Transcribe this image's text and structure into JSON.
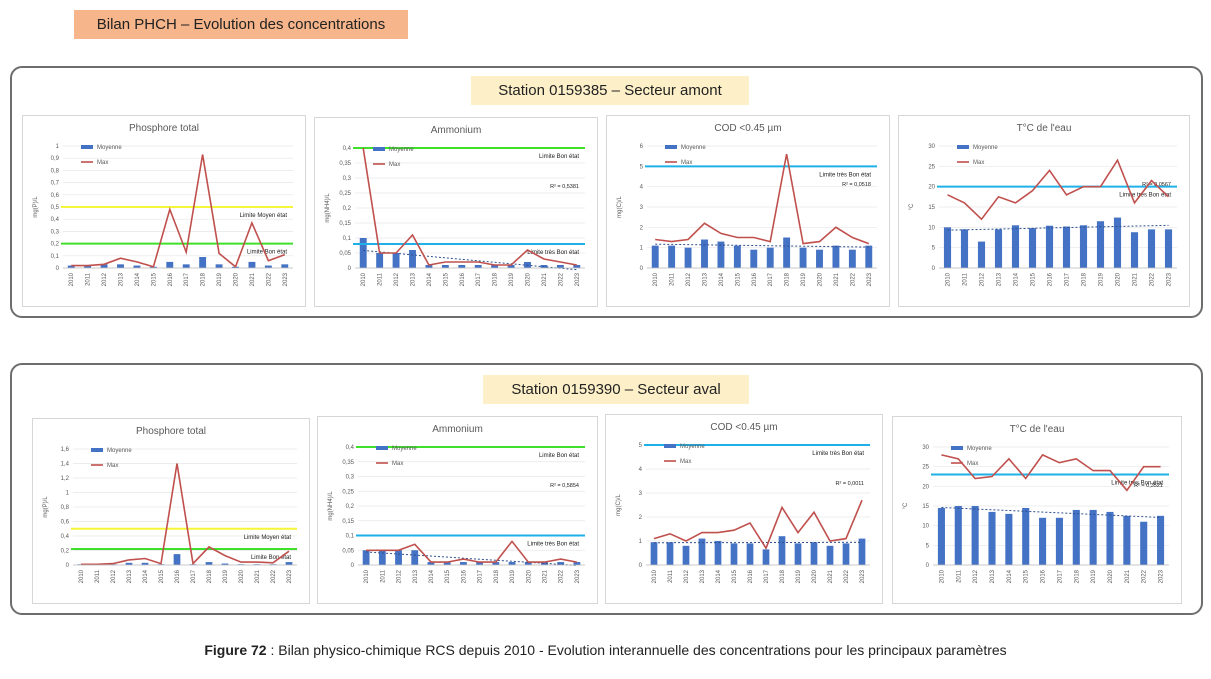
{
  "header": {
    "title": "Bilan PHCH – Evolution des concentrations"
  },
  "panels": [
    {
      "station": "Station 0159385 – Secteur amont",
      "charts": [
        {
          "title": "Phosphore total",
          "ylabel": "mg(P)/L",
          "legend": [
            "Moyenne",
            "Max"
          ],
          "ticks": [
            "0",
            "0,1",
            "0,2",
            "0,3",
            "0,4",
            "0,5",
            "0,6",
            "0,7",
            "0,8",
            "0,9",
            "1"
          ],
          "limits": [
            {
              "label": "Limite Moyen état",
              "value": 0.5,
              "color": "#f5f53a"
            },
            {
              "label": "Limite Bon état",
              "value": 0.2,
              "color": "#3ee02a"
            }
          ],
          "r2": ""
        },
        {
          "title": "Ammonium",
          "ylabel": "mg(NH4)/L",
          "legend": [
            "Moyenne",
            "Max"
          ],
          "ticks": [
            "0",
            "0,05",
            "0,1",
            "0,15",
            "0,2",
            "0,25",
            "0,3",
            "0,35",
            "0,4"
          ],
          "limits": [
            {
              "label": "Limite Bon état",
              "value": 0.4,
              "color": "#3ee02a"
            },
            {
              "label": "Limite très Bon état",
              "value": 0.08,
              "color": "#1fb0e8"
            }
          ],
          "r2": "R² = 0,5381"
        },
        {
          "title": "COD <0.45 µm",
          "ylabel": "mg(C)/L",
          "legend": [
            "Moyenne",
            "Max"
          ],
          "ticks": [
            "0",
            "1",
            "2",
            "3",
            "4",
            "5",
            "6"
          ],
          "limits": [
            {
              "label": "Limite très Bon état",
              "value": 5,
              "color": "#1fb0e8"
            }
          ],
          "r2": "R² = 0,0518"
        },
        {
          "title": "T°C de l'eau",
          "ylabel": "°C",
          "legend": [
            "Moyenne",
            "Max"
          ],
          "ticks": [
            "0",
            "5",
            "10",
            "15",
            "20",
            "25",
            "30"
          ],
          "limits": [
            {
              "label": "Limite très Bon état",
              "value": 20,
              "color": "#1fb0e8"
            }
          ],
          "r2": "R² = 0,0567"
        }
      ]
    },
    {
      "station": "Station 0159390 – Secteur aval",
      "charts": [
        {
          "title": "Phosphore total",
          "ylabel": "mg(P)/L",
          "legend": [
            "Moyenne",
            "Max"
          ],
          "ticks": [
            "0",
            "0,2",
            "0,4",
            "0,6",
            "0,8",
            "1",
            "1,2",
            "1,4",
            "1,6"
          ],
          "limits": [
            {
              "label": "Limite Moyen état",
              "value": 0.5,
              "color": "#f5f53a"
            },
            {
              "label": "Limite Bon état",
              "value": 0.22,
              "color": "#3ee02a"
            }
          ],
          "r2": ""
        },
        {
          "title": "Ammonium",
          "ylabel": "mg(NH4)/L",
          "legend": [
            "Moyenne",
            "Max"
          ],
          "ticks": [
            "0",
            "0,05",
            "0,1",
            "0,15",
            "0,2",
            "0,25",
            "0,3",
            "0,35",
            "0,4"
          ],
          "limits": [
            {
              "label": "Limite Bon état",
              "value": 0.4,
              "color": "#3ee02a"
            },
            {
              "label": "Limite très Bon état",
              "value": 0.1,
              "color": "#1fb0e8"
            }
          ],
          "r2": "R² = 0,5854"
        },
        {
          "title": "COD <0.45 µm",
          "ylabel": "mg(C)/L",
          "legend": [
            "Moyenne",
            "Max"
          ],
          "ticks": [
            "0",
            "1",
            "2",
            "3",
            "4",
            "5"
          ],
          "limits": [
            {
              "label": "Limite très Bon état",
              "value": 5,
              "color": "#1fb0e8"
            }
          ],
          "r2": "R² = 0,0011"
        },
        {
          "title": "T°C de l'eau",
          "ylabel": "°C",
          "legend": [
            "Moyenne",
            "Max"
          ],
          "ticks": [
            "0",
            "5",
            "10",
            "15",
            "20",
            "25",
            "30"
          ],
          "limits": [
            {
              "label": "Limite très Bon état",
              "value": 23,
              "color": "#1fb0e8"
            }
          ],
          "r2": "R² = 0,3521"
        }
      ]
    }
  ],
  "chart_data": [
    {
      "type": "bar",
      "title": "Phosphore total",
      "ylim": [
        0,
        1
      ],
      "categories": [
        "2010",
        "2011",
        "2012",
        "2013",
        "2014",
        "2015",
        "2016",
        "2017",
        "2018",
        "2019",
        "2020",
        "2021",
        "2022",
        "2023"
      ],
      "series": [
        {
          "name": "Moyenne",
          "values": [
            0.02,
            0.02,
            0.03,
            0.03,
            0.02,
            0.01,
            0.05,
            0.03,
            0.09,
            0.03,
            0.01,
            0.05,
            0.02,
            0.03
          ]
        },
        {
          "name": "Max",
          "values": [
            0.02,
            0.02,
            0.03,
            0.08,
            0.05,
            0.01,
            0.48,
            0.13,
            0.93,
            0.12,
            0.01,
            0.37,
            0.06,
            0.11
          ]
        }
      ]
    },
    {
      "type": "bar",
      "title": "Ammonium",
      "ylim": [
        0,
        0.4
      ],
      "categories": [
        "2010",
        "2011",
        "2012",
        "2013",
        "2014",
        "2015",
        "2016",
        "2017",
        "2018",
        "2019",
        "2020",
        "2021",
        "2022",
        "2023"
      ],
      "series": [
        {
          "name": "Moyenne",
          "values": [
            0.1,
            0.05,
            0.05,
            0.06,
            0.01,
            0.01,
            0.01,
            0.01,
            0.01,
            0.01,
            0.02,
            0.01,
            0.01,
            0.01
          ]
        },
        {
          "name": "Max",
          "values": [
            0.4,
            0.05,
            0.05,
            0.11,
            0.01,
            0.02,
            0.02,
            0.02,
            0.01,
            0.01,
            0.06,
            0.03,
            0.02,
            0.01
          ]
        }
      ]
    },
    {
      "type": "bar",
      "title": "COD <0.45 µm",
      "ylim": [
        0,
        6
      ],
      "categories": [
        "2010",
        "2011",
        "2012",
        "2013",
        "2014",
        "2015",
        "2016",
        "2017",
        "2018",
        "2019",
        "2020",
        "2021",
        "2022",
        "2023"
      ],
      "series": [
        {
          "name": "Moyenne",
          "values": [
            1.1,
            1.1,
            1.0,
            1.4,
            1.3,
            1.1,
            0.9,
            1.0,
            1.5,
            1.0,
            0.9,
            1.1,
            0.9,
            1.1
          ]
        },
        {
          "name": "Max",
          "values": [
            1.4,
            1.3,
            1.4,
            2.2,
            1.7,
            1.5,
            1.5,
            1.3,
            5.6,
            1.2,
            1.3,
            2.0,
            1.5,
            1.2
          ]
        }
      ]
    },
    {
      "type": "bar",
      "title": "T°C de l'eau",
      "ylim": [
        0,
        30
      ],
      "categories": [
        "2010",
        "2011",
        "2012",
        "2013",
        "2014",
        "2015",
        "2016",
        "2017",
        "2018",
        "2019",
        "2020",
        "2021",
        "2022",
        "2023"
      ],
      "series": [
        {
          "name": "Moyenne",
          "values": [
            10,
            9.5,
            6.5,
            9.5,
            10.5,
            9.8,
            10.4,
            10.2,
            10.5,
            11.5,
            12.4,
            8.8,
            9.5,
            9.5
          ]
        },
        {
          "name": "Max",
          "values": [
            18,
            16,
            12,
            17.5,
            16,
            19,
            24,
            18,
            20,
            20,
            26.5,
            16,
            21.5,
            17.5
          ]
        }
      ]
    },
    {
      "type": "bar",
      "title": "Phosphore total",
      "ylim": [
        0,
        1.6
      ],
      "categories": [
        "2010",
        "2011",
        "2012",
        "2013",
        "2014",
        "2015",
        "2016",
        "2017",
        "2018",
        "2019",
        "2020",
        "2021",
        "2022",
        "2023"
      ],
      "series": [
        {
          "name": "Moyenne",
          "values": [
            0.01,
            0.01,
            0.01,
            0.03,
            0.03,
            0.01,
            0.15,
            0.01,
            0.04,
            0.02,
            0.01,
            0.01,
            0.01,
            0.04
          ]
        },
        {
          "name": "Max",
          "values": [
            0.01,
            0.01,
            0.02,
            0.07,
            0.09,
            0.02,
            1.4,
            0.02,
            0.25,
            0.13,
            0.04,
            0.04,
            0.03,
            0.19
          ]
        }
      ]
    },
    {
      "type": "bar",
      "title": "Ammonium",
      "ylim": [
        0,
        0.4
      ],
      "categories": [
        "2010",
        "2011",
        "2012",
        "2013",
        "2014",
        "2015",
        "2016",
        "2017",
        "2018",
        "2019",
        "2020",
        "2021",
        "2022",
        "2023"
      ],
      "series": [
        {
          "name": "Moyenne",
          "values": [
            0.05,
            0.05,
            0.05,
            0.05,
            0.01,
            0.01,
            0.01,
            0.01,
            0.01,
            0.01,
            0.01,
            0.01,
            0.01,
            0.01
          ]
        },
        {
          "name": "Max",
          "values": [
            0.05,
            0.05,
            0.05,
            0.07,
            0.01,
            0.01,
            0.02,
            0.01,
            0.01,
            0.08,
            0.01,
            0.01,
            0.02,
            0.01
          ]
        }
      ]
    },
    {
      "type": "bar",
      "title": "COD <0.45 µm",
      "ylim": [
        0,
        5
      ],
      "categories": [
        "2010",
        "2011",
        "2012",
        "2013",
        "2014",
        "2015",
        "2016",
        "2017",
        "2018",
        "2019",
        "2020",
        "2021",
        "2022",
        "2023"
      ],
      "series": [
        {
          "name": "Moyenne",
          "values": [
            0.95,
            0.95,
            0.8,
            1.1,
            1.0,
            0.9,
            0.9,
            0.65,
            1.2,
            0.9,
            0.95,
            0.8,
            0.9,
            1.1
          ]
        },
        {
          "name": "Max",
          "values": [
            1.1,
            1.3,
            1.0,
            1.35,
            1.35,
            1.45,
            1.75,
            0.7,
            2.4,
            1.35,
            2.2,
            1.0,
            1.1,
            2.7
          ]
        }
      ]
    },
    {
      "type": "bar",
      "title": "T°C de l'eau",
      "ylim": [
        0,
        30
      ],
      "categories": [
        "2010",
        "2011",
        "2012",
        "2013",
        "2014",
        "2015",
        "2016",
        "2017",
        "2018",
        "2019",
        "2020",
        "2021",
        "2022",
        "2023"
      ],
      "series": [
        {
          "name": "Moyenne",
          "values": [
            14.5,
            15,
            15,
            13.5,
            13,
            14.5,
            12,
            12,
            14,
            14,
            13.5,
            12.5,
            11,
            12.5
          ]
        },
        {
          "name": "Max",
          "values": [
            28,
            27,
            22,
            22.5,
            27,
            22,
            28,
            26,
            27,
            24,
            24,
            19,
            25,
            25
          ]
        }
      ]
    }
  ],
  "caption": {
    "label": "Figure 72",
    "text": " : Bilan physico-chimique RCS depuis 2010 - Evolution interannuelle des concentrations pour les principaux paramètres"
  }
}
